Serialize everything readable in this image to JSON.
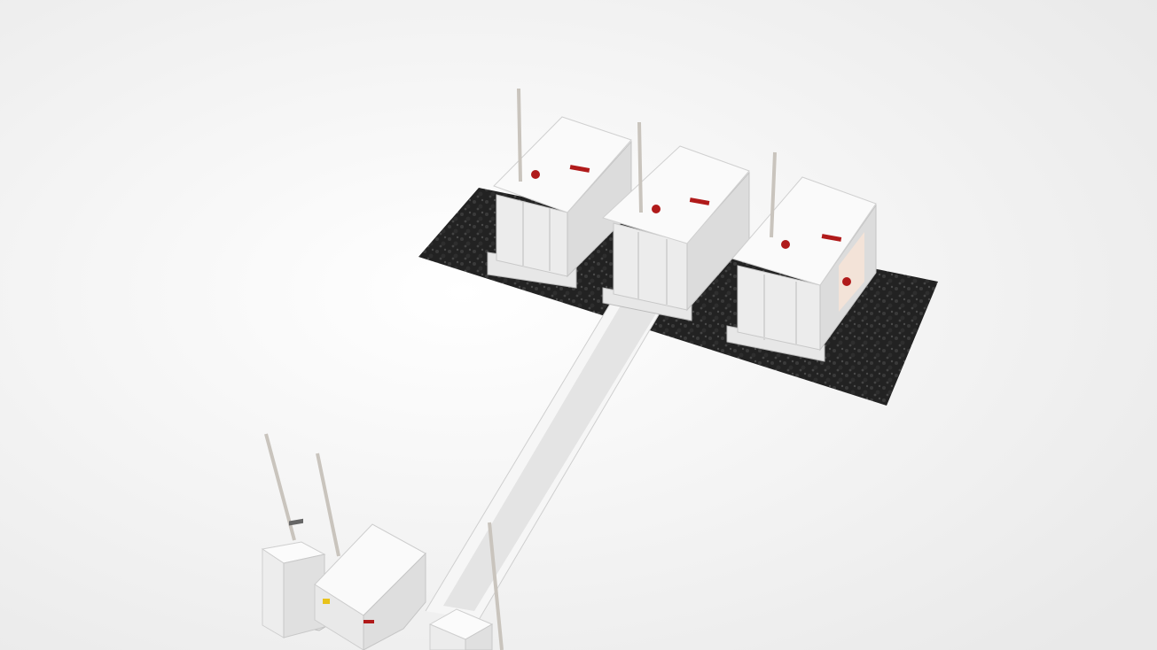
{
  "scene": {
    "description_free": true,
    "background_color": "#f3f3f3",
    "gravel_color": "#1e1e1e",
    "tank_color": "#f4f4f4",
    "tank_shadow_color": "#d6d6d6",
    "accent_red": "#b01a1a",
    "pipe_color": "#c9c4bd",
    "objects": [
      {
        "kind": "gravel-pad",
        "name": "gravel-pad"
      },
      {
        "kind": "tank",
        "name": "storage-tank-1"
      },
      {
        "kind": "tank",
        "name": "storage-tank-2"
      },
      {
        "kind": "tank",
        "name": "storage-tank-3"
      },
      {
        "kind": "trench",
        "name": "pipe-trench"
      },
      {
        "kind": "dispenser",
        "name": "fuel-dispenser-left"
      },
      {
        "kind": "canopy",
        "name": "dispenser-canopy"
      },
      {
        "kind": "dispenser",
        "name": "fuel-dispenser-right"
      }
    ]
  }
}
